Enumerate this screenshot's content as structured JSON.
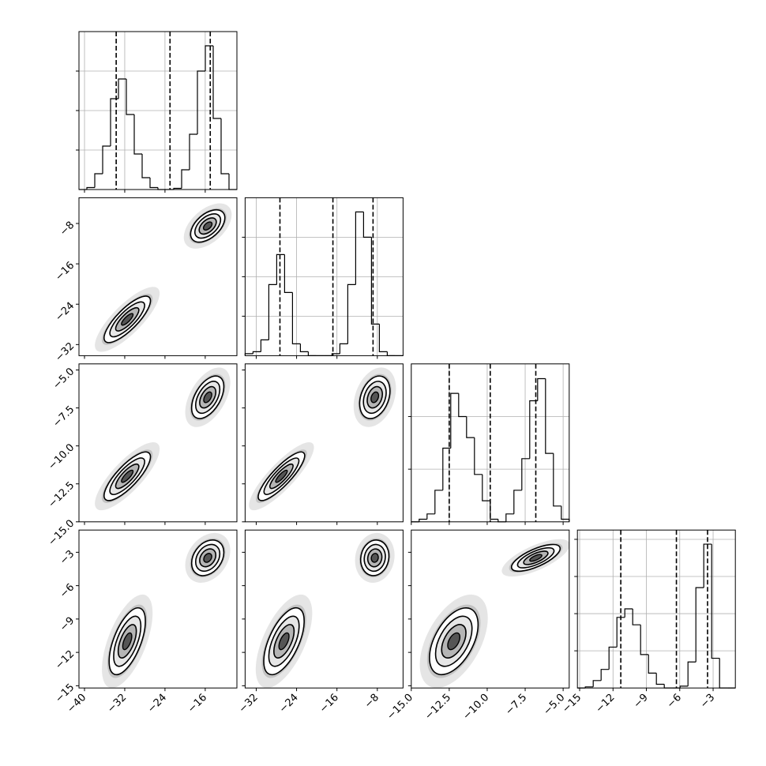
{
  "chart_data": {
    "type": "corner",
    "diagonal_grid": true,
    "parameters": [
      {
        "lim": [
          -41.1,
          -9.7
        ],
        "ticks": [
          {
            "value": -40,
            "label": "−40"
          },
          {
            "value": -32,
            "label": "−32"
          },
          {
            "value": -24,
            "label": "−24"
          },
          {
            "value": -16,
            "label": "−16"
          }
        ],
        "quantiles": [
          -33.7,
          -23.0,
          -15.0
        ],
        "bins": [
          -41.1,
          -39.53,
          -37.96,
          -36.39,
          -34.82,
          -33.25,
          -31.68,
          -30.11,
          -28.54,
          -26.97,
          -25.4,
          -23.83,
          -22.26,
          -20.69,
          -19.12,
          -17.55,
          -15.98,
          -14.41,
          -12.84,
          -11.27,
          -9.7
        ],
        "counts": [
          0,
          50,
          400,
          1100,
          2300,
          2800,
          1900,
          900,
          300,
          50,
          0,
          0,
          30,
          500,
          1400,
          3000,
          3640,
          1800,
          400,
          0
        ],
        "hist_ylim": [
          0,
          4000
        ],
        "hist_yticks": [
          1000,
          2000,
          3000
        ]
      },
      {
        "lim": [
          -34.2,
          -2.9
        ],
        "ticks": [
          {
            "value": -32,
            "label": "−32"
          },
          {
            "value": -24,
            "label": "−24"
          },
          {
            "value": -16,
            "label": "−16"
          },
          {
            "value": -8,
            "label": "−8"
          }
        ],
        "quantiles": [
          -27.3,
          -16.8,
          -8.85
        ],
        "bins": [
          -34.2,
          -32.635,
          -31.07,
          -29.505,
          -27.94,
          -26.375,
          -24.81,
          -23.245,
          -21.68,
          -20.115,
          -18.55,
          -16.985,
          -15.42,
          -13.855,
          -12.29,
          -10.725,
          -9.16,
          -7.595,
          -6.03,
          -4.465,
          -2.9
        ],
        "counts": [
          50,
          100,
          400,
          1800,
          2560,
          1600,
          300,
          100,
          0,
          0,
          0,
          50,
          300,
          1800,
          3640,
          3000,
          800,
          100,
          0,
          0
        ],
        "hist_ylim": [
          0,
          4000
        ],
        "hist_yticks": [
          1000,
          2000,
          3000
        ]
      },
      {
        "lim": [
          -15,
          -4.6
        ],
        "ticks": [
          {
            "value": -15,
            "label": "−15.0"
          },
          {
            "value": -12.5,
            "label": "−12.5"
          },
          {
            "value": -10,
            "label": "−10.0"
          },
          {
            "value": -7.5,
            "label": "−7.5"
          },
          {
            "value": -5,
            "label": "−5.0"
          }
        ],
        "quantiles": [
          -12.5,
          -9.8,
          -6.8
        ],
        "bins": [
          -15,
          -14.48,
          -13.96,
          -13.44,
          -12.92,
          -12.4,
          -11.88,
          -11.36,
          -10.84,
          -10.32,
          -9.8,
          -9.28,
          -8.76,
          -8.24,
          -7.72,
          -7.2,
          -6.68,
          -6.16,
          -5.64,
          -5.12,
          -4.6
        ],
        "counts": [
          0,
          50,
          150,
          600,
          1400,
          2440,
          2000,
          1600,
          900,
          400,
          50,
          0,
          150,
          600,
          1200,
          2300,
          2720,
          1300,
          300,
          50
        ],
        "hist_ylim": [
          0,
          3000
        ],
        "hist_yticks": [
          1000,
          2000
        ]
      },
      {
        "lim": [
          -15.2,
          -1.0
        ],
        "ticks": [
          {
            "value": -15,
            "label": "−15"
          },
          {
            "value": -12,
            "label": "−12"
          },
          {
            "value": -9,
            "label": "−9"
          },
          {
            "value": -6,
            "label": "−6"
          },
          {
            "value": -3,
            "label": "−3"
          }
        ],
        "quantiles": [
          -11.3,
          -6.3,
          -3.5
        ],
        "bins": [
          -15.2,
          -14.49,
          -13.78,
          -13.07,
          -12.36,
          -11.65,
          -10.94,
          -10.23,
          -9.52,
          -8.81,
          -8.1,
          -7.39,
          -6.68,
          -5.97,
          -5.26,
          -4.55,
          -3.84,
          -3.13,
          -2.42,
          -1.71,
          -1.0
        ],
        "counts": [
          0,
          30,
          200,
          500,
          1100,
          1900,
          2130,
          1700,
          900,
          400,
          100,
          0,
          0,
          50,
          700,
          2700,
          3870,
          800,
          0,
          0
        ],
        "hist_ylim": [
          0,
          4250
        ],
        "hist_yticks": [
          1000,
          2000,
          3000,
          4000
        ]
      }
    ],
    "panels": [
      {
        "x_param": 0,
        "y_param": 1,
        "clusters": [
          {
            "x": -31.5,
            "y": -27,
            "sx": 2.3,
            "sy": 2.3,
            "rho": 0.8
          },
          {
            "x": -15.5,
            "y": -8.5,
            "sx": 1.7,
            "sy": 1.6,
            "rho": 0.5
          }
        ]
      },
      {
        "x_param": 0,
        "y_param": 2,
        "clusters": [
          {
            "x": -31.5,
            "y": -12,
            "sx": 2.3,
            "sy": 0.8,
            "rho": 0.8
          },
          {
            "x": -15.5,
            "y": -6.8,
            "sx": 1.6,
            "sy": 0.7,
            "rho": 0.5
          }
        ]
      },
      {
        "x_param": 1,
        "y_param": 2,
        "clusters": [
          {
            "x": -27,
            "y": -12,
            "sx": 2.3,
            "sy": 0.8,
            "rho": 0.85
          },
          {
            "x": -8.5,
            "y": -6.8,
            "sx": 1.5,
            "sy": 0.7,
            "rho": 0.3
          }
        ]
      },
      {
        "x_param": 0,
        "y_param": 3,
        "clusters": [
          {
            "x": -31.5,
            "y": -11,
            "sx": 1.8,
            "sy": 1.5,
            "rho": 0.6
          },
          {
            "x": -15.5,
            "y": -3.5,
            "sx": 1.6,
            "sy": 0.8,
            "rho": 0.3
          }
        ]
      },
      {
        "x_param": 1,
        "y_param": 3,
        "clusters": [
          {
            "x": -26.5,
            "y": -11,
            "sx": 2.0,
            "sy": 1.5,
            "rho": 0.6
          },
          {
            "x": -8.5,
            "y": -3.5,
            "sx": 1.4,
            "sy": 0.8,
            "rho": 0.1
          }
        ]
      },
      {
        "x_param": 2,
        "y_param": 3,
        "clusters": [
          {
            "x": -12.2,
            "y": -11,
            "sx": 0.8,
            "sy": 1.5,
            "rho": 0.5
          },
          {
            "x": -6.8,
            "y": -3.5,
            "sx": 0.8,
            "sy": 0.6,
            "rho": 0.7
          }
        ]
      }
    ]
  }
}
